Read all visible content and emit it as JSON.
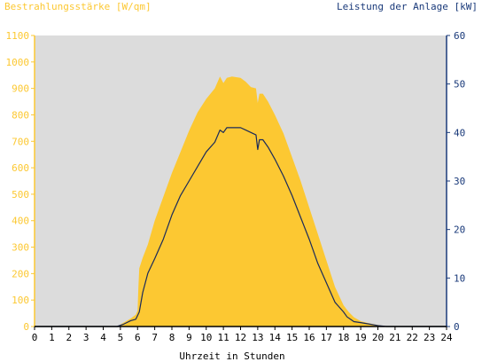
{
  "chart_data": {
    "type": "area",
    "left_axis_title": "Bestrahlungsstärke [W/qm]",
    "right_axis_title": "Leistung der Anlage [kW]",
    "xlabel": "Uhrzeit in Stunden",
    "xlim": [
      0,
      24
    ],
    "x_ticks": [
      0,
      1,
      2,
      3,
      4,
      5,
      6,
      7,
      8,
      9,
      10,
      11,
      12,
      13,
      14,
      15,
      16,
      17,
      18,
      19,
      20,
      21,
      22,
      23,
      24
    ],
    "ylim_left": [
      0,
      1100
    ],
    "y_ticks_left": [
      0,
      100,
      200,
      300,
      400,
      500,
      600,
      700,
      800,
      900,
      1000,
      1100
    ],
    "ylim_right": [
      0,
      60
    ],
    "y_ticks_right": [
      0,
      10,
      20,
      30,
      40,
      50,
      60
    ],
    "grid": false,
    "colors": {
      "plot_background": "#dcdcdc",
      "irradiance_fill": "#fcc832",
      "power_line": "#1a2a5a",
      "left_axis": "#fcc832",
      "right_axis": "#1a3a7a",
      "xlabel": "#000000"
    },
    "series": [
      {
        "axis": "left",
        "kind": "area",
        "x": [
          0,
          4.8,
          5.2,
          5.6,
          5.9,
          6.0,
          6.05,
          6.1,
          6.3,
          6.6,
          7.0,
          7.5,
          8.0,
          8.5,
          9.0,
          9.5,
          10.0,
          10.5,
          10.8,
          11.0,
          11.2,
          11.5,
          12.0,
          12.3,
          12.6,
          12.9,
          13.0,
          13.1,
          13.3,
          13.6,
          14.0,
          14.5,
          15.0,
          15.5,
          16.0,
          16.5,
          17.0,
          17.5,
          18.0,
          18.3,
          18.6,
          19.0,
          19.5,
          20.0,
          20.5,
          24
        ],
        "y": [
          0,
          0,
          15,
          30,
          45,
          60,
          150,
          220,
          260,
          310,
          400,
          490,
          580,
          660,
          740,
          810,
          860,
          900,
          945,
          920,
          940,
          945,
          940,
          925,
          905,
          900,
          845,
          880,
          880,
          850,
          800,
          730,
          640,
          550,
          450,
          350,
          250,
          150,
          80,
          55,
          35,
          20,
          12,
          6,
          0,
          0
        ]
      },
      {
        "axis": "right",
        "kind": "line",
        "x": [
          0,
          4.8,
          5.2,
          5.6,
          5.9,
          6.1,
          6.3,
          6.6,
          7.0,
          7.5,
          8.0,
          8.5,
          9.0,
          9.5,
          10.0,
          10.5,
          10.8,
          11.0,
          11.2,
          11.5,
          12.0,
          12.3,
          12.6,
          12.9,
          13.0,
          13.1,
          13.3,
          13.6,
          14.0,
          14.5,
          15.0,
          15.5,
          16.0,
          16.5,
          17.0,
          17.5,
          18.0,
          18.2,
          18.6,
          19.0,
          19.5,
          20.0,
          20.5,
          24
        ],
        "y": [
          0,
          0,
          0.5,
          1.2,
          1.5,
          3,
          7,
          11,
          14,
          18,
          23,
          27,
          30,
          33,
          36,
          38,
          40.5,
          40,
          41,
          41,
          41,
          40.5,
          40,
          39.5,
          36.5,
          38.5,
          38.5,
          37,
          34.5,
          31,
          27,
          22.5,
          18,
          13,
          9,
          5,
          3,
          2,
          1,
          0.8,
          0.5,
          0.2,
          0,
          0
        ]
      }
    ]
  }
}
